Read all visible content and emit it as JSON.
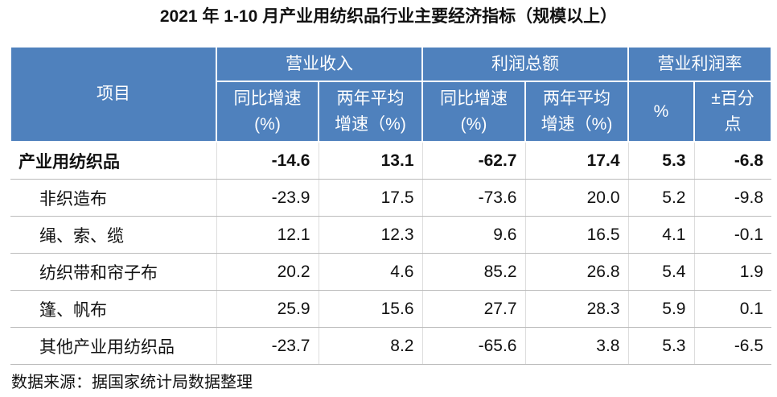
{
  "title": "2021 年 1-10 月产业用纺织品行业主要经济指标（规模以上）",
  "table": {
    "item_header": "项目",
    "groups": [
      "营业收入",
      "利润总额",
      "营业利润率"
    ],
    "subheaders": [
      [
        "同比增速",
        "(%)"
      ],
      [
        "两年平均",
        "增速（%)"
      ],
      [
        "同比增速",
        "(%)"
      ],
      [
        "两年平均",
        "增速（%)"
      ],
      [
        "%"
      ],
      [
        "±百分",
        "点"
      ]
    ],
    "rows": [
      [
        "产业用纺织品",
        "-14.6",
        "13.1",
        "-62.7",
        "17.4",
        "5.3",
        "-6.8"
      ],
      [
        "非织造布",
        "-23.9",
        "17.5",
        "-73.6",
        "20.0",
        "5.2",
        "-9.8"
      ],
      [
        "绳、索、缆",
        "12.1",
        "12.3",
        "9.6",
        "16.5",
        "4.1",
        "-0.1"
      ],
      [
        "纺织带和帘子布",
        "20.2",
        "4.6",
        "85.2",
        "26.8",
        "5.4",
        "1.9"
      ],
      [
        "篷、帆布",
        "25.9",
        "15.6",
        "27.7",
        "28.3",
        "5.9",
        "0.1"
      ],
      [
        "其他产业用纺织品",
        "-23.7",
        "8.2",
        "-65.6",
        "3.8",
        "5.3",
        "-6.5"
      ]
    ]
  },
  "source": "数据来源：据国家统计局数据整理"
}
